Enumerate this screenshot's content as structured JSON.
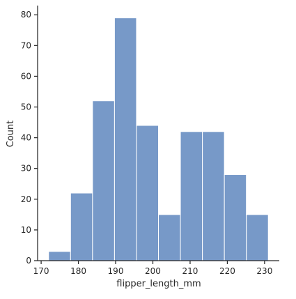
{
  "chart_data": {
    "type": "bar",
    "title": "",
    "xlabel": "flipper_length_mm",
    "ylabel": "Count",
    "bins": [
      {
        "start": 172.0,
        "end": 177.9,
        "count": 3
      },
      {
        "start": 177.9,
        "end": 183.8,
        "count": 22
      },
      {
        "start": 183.8,
        "end": 189.7,
        "count": 52
      },
      {
        "start": 189.7,
        "end": 195.6,
        "count": 79
      },
      {
        "start": 195.6,
        "end": 201.5,
        "count": 44
      },
      {
        "start": 201.5,
        "end": 207.4,
        "count": 15
      },
      {
        "start": 207.4,
        "end": 213.3,
        "count": 42
      },
      {
        "start": 213.3,
        "end": 219.2,
        "count": 42
      },
      {
        "start": 219.2,
        "end": 225.1,
        "count": 28
      },
      {
        "start": 225.1,
        "end": 231.0,
        "count": 15
      }
    ],
    "xlim": [
      169.05,
      233.95
    ],
    "ylim": [
      0,
      83
    ],
    "xticks": [
      170,
      180,
      190,
      200,
      210,
      220,
      230
    ],
    "yticks": [
      0,
      10,
      20,
      30,
      40,
      50,
      60,
      70,
      80
    ],
    "bar_color": "#7799c8",
    "bar_edge_color": "#ffffff",
    "axis_color": "#262626",
    "grid": false,
    "legend": "none"
  }
}
